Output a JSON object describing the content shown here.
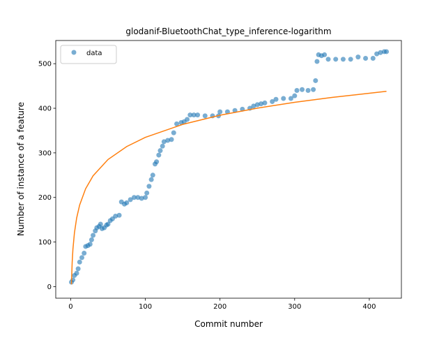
{
  "chart_data": {
    "type": "scatter",
    "title": "glodanif-BluetoothChat_type_inference-logarithm",
    "xlabel": "Commit number",
    "ylabel": "Number of instance of a feature",
    "xlim": [
      -20,
      443
    ],
    "ylim": [
      -26,
      552
    ],
    "xticks": [
      0,
      100,
      200,
      300,
      400
    ],
    "yticks": [
      0,
      100,
      200,
      300,
      400,
      500
    ],
    "legend": "upper left",
    "series": [
      {
        "name": "data",
        "type": "scatter",
        "color": "#1f77b4",
        "x": [
          1,
          3,
          5,
          8,
          10,
          12,
          15,
          18,
          20,
          23,
          26,
          28,
          30,
          33,
          35,
          38,
          40,
          42,
          45,
          48,
          50,
          53,
          56,
          60,
          65,
          68,
          72,
          75,
          80,
          85,
          90,
          95,
          100,
          102,
          105,
          108,
          110,
          113,
          115,
          118,
          120,
          123,
          125,
          130,
          135,
          138,
          142,
          148,
          152,
          156,
          160,
          165,
          170,
          180,
          190,
          198,
          200,
          210,
          220,
          230,
          240,
          245,
          250,
          255,
          260,
          270,
          275,
          285,
          295,
          300,
          303,
          310,
          318,
          325,
          328,
          330,
          332,
          336,
          340,
          345,
          355,
          365,
          375,
          385,
          395,
          405,
          410,
          415,
          420,
          423
        ],
        "values": [
          10,
          15,
          25,
          30,
          40,
          55,
          65,
          75,
          90,
          92,
          95,
          105,
          115,
          125,
          132,
          135,
          140,
          130,
          132,
          138,
          140,
          148,
          152,
          158,
          160,
          190,
          185,
          188,
          195,
          200,
          200,
          198,
          200,
          210,
          225,
          240,
          250,
          275,
          280,
          295,
          305,
          315,
          325,
          328,
          330,
          345,
          365,
          368,
          370,
          375,
          385,
          385,
          385,
          383,
          383,
          383,
          392,
          392,
          395,
          398,
          400,
          405,
          408,
          410,
          412,
          415,
          420,
          422,
          422,
          428,
          440,
          442,
          440,
          442,
          462,
          505,
          520,
          518,
          520,
          510,
          510,
          510,
          510,
          515,
          512,
          512,
          522,
          525,
          527,
          527
        ]
      },
      {
        "type": "line",
        "color": "#ff7f0e",
        "x": [
          1,
          2,
          3,
          5,
          8,
          12,
          20,
          30,
          50,
          75,
          100,
          150,
          200,
          250,
          300,
          350,
          423
        ],
        "values": [
          5,
          54.6,
          83.7,
          120.2,
          153.9,
          182.9,
          219.5,
          248.5,
          285.1,
          314.1,
          334.7,
          363.8,
          384.4,
          400.3,
          413.4,
          424.4,
          438.0
        ]
      }
    ]
  }
}
